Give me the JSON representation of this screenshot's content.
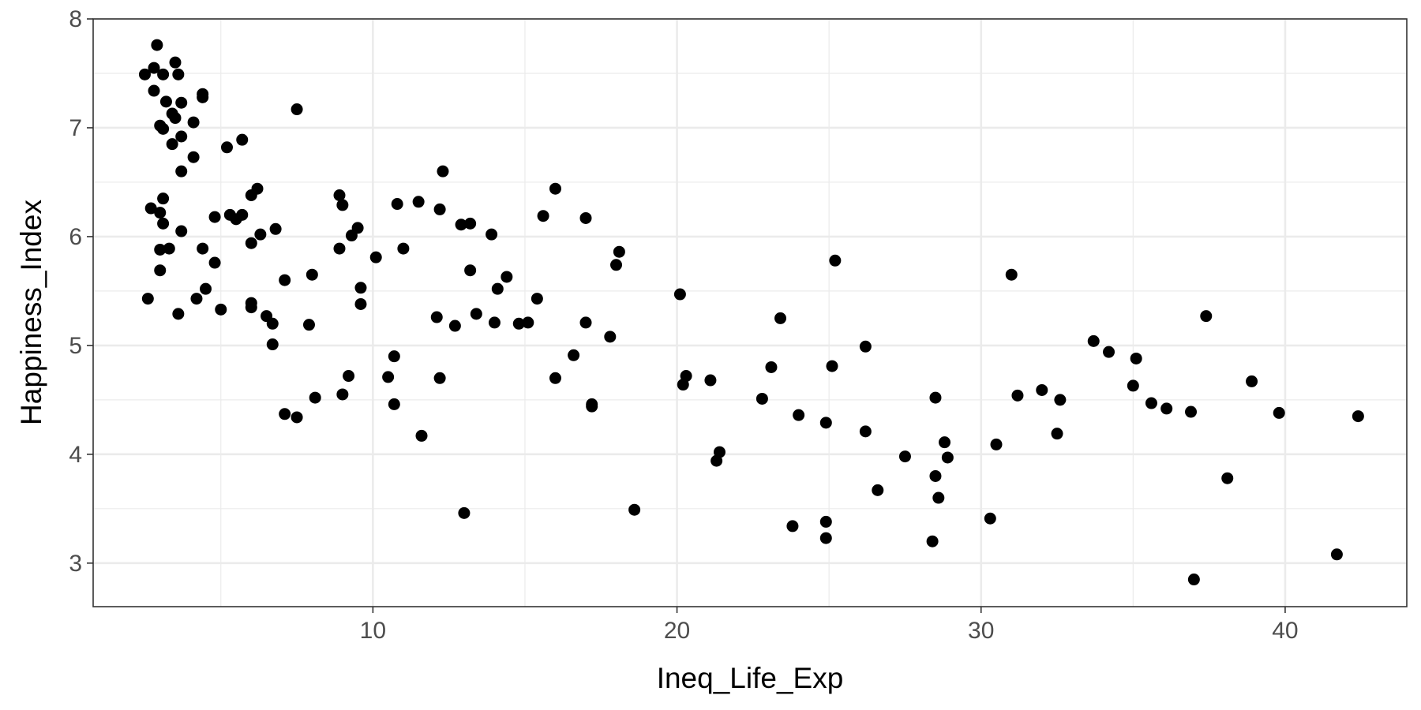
{
  "chart_data": {
    "type": "scatter",
    "title": "",
    "xlabel": "Ineq_Life_Exp",
    "ylabel": "Happiness_Index",
    "xlim": [
      0.8,
      44.0
    ],
    "ylim": [
      2.6,
      8.0
    ],
    "x_ticks": [
      10,
      20,
      30,
      40
    ],
    "x_tick_labels": [
      "10",
      "20",
      "30",
      "40"
    ],
    "x_minor_ticks": [
      5,
      15,
      25,
      35
    ],
    "y_ticks": [
      3,
      4,
      5,
      6,
      7,
      8
    ],
    "y_tick_labels": [
      "3",
      "4",
      "5",
      "6",
      "7",
      "8"
    ],
    "y_minor_ticks": [
      3.5,
      4.5,
      5.5,
      6.5,
      7.5
    ],
    "grid": true,
    "theme": "bw",
    "point_color": "#000000",
    "points": [
      [
        2.5,
        7.49
      ],
      [
        2.8,
        7.55
      ],
      [
        2.9,
        7.76
      ],
      [
        2.8,
        7.34
      ],
      [
        3.0,
        7.02
      ],
      [
        3.1,
        7.49
      ],
      [
        3.2,
        7.24
      ],
      [
        3.1,
        6.99
      ],
      [
        3.4,
        7.13
      ],
      [
        3.5,
        7.09
      ],
      [
        3.5,
        7.6
      ],
      [
        3.6,
        7.49
      ],
      [
        3.4,
        6.85
      ],
      [
        3.7,
        6.92
      ],
      [
        3.7,
        7.23
      ],
      [
        4.1,
        7.05
      ],
      [
        4.4,
        7.31
      ],
      [
        4.4,
        7.28
      ],
      [
        3.7,
        6.6
      ],
      [
        4.1,
        6.73
      ],
      [
        2.6,
        5.43
      ],
      [
        2.7,
        6.26
      ],
      [
        3.0,
        6.22
      ],
      [
        3.1,
        6.35
      ],
      [
        3.0,
        5.88
      ],
      [
        3.1,
        6.12
      ],
      [
        3.0,
        5.69
      ],
      [
        3.3,
        5.89
      ],
      [
        3.6,
        5.29
      ],
      [
        3.7,
        6.05
      ],
      [
        4.2,
        5.43
      ],
      [
        4.4,
        5.89
      ],
      [
        4.5,
        5.52
      ],
      [
        4.8,
        5.76
      ],
      [
        4.8,
        6.18
      ],
      [
        5.0,
        5.33
      ],
      [
        5.2,
        6.82
      ],
      [
        5.3,
        6.2
      ],
      [
        5.5,
        6.16
      ],
      [
        5.7,
        6.89
      ],
      [
        5.7,
        6.2
      ],
      [
        6.0,
        6.38
      ],
      [
        6.2,
        6.44
      ],
      [
        6.0,
        5.94
      ],
      [
        6.0,
        5.39
      ],
      [
        6.0,
        5.35
      ],
      [
        6.3,
        6.02
      ],
      [
        6.5,
        5.27
      ],
      [
        6.7,
        5.2
      ],
      [
        6.8,
        6.07
      ],
      [
        6.7,
        5.01
      ],
      [
        7.1,
        5.6
      ],
      [
        7.1,
        4.37
      ],
      [
        7.5,
        7.17
      ],
      [
        7.5,
        4.34
      ],
      [
        7.9,
        5.19
      ],
      [
        8.0,
        5.65
      ],
      [
        8.1,
        4.52
      ],
      [
        8.9,
        6.38
      ],
      [
        8.9,
        5.89
      ],
      [
        9.0,
        6.29
      ],
      [
        9.0,
        4.55
      ],
      [
        9.2,
        4.72
      ],
      [
        9.3,
        6.01
      ],
      [
        9.5,
        6.08
      ],
      [
        9.6,
        5.53
      ],
      [
        9.6,
        5.38
      ],
      [
        10.1,
        5.81
      ],
      [
        10.5,
        4.71
      ],
      [
        10.7,
        4.46
      ],
      [
        10.7,
        4.9
      ],
      [
        10.8,
        6.3
      ],
      [
        11.0,
        5.89
      ],
      [
        11.5,
        6.32
      ],
      [
        11.6,
        4.17
      ],
      [
        12.1,
        5.26
      ],
      [
        12.2,
        6.25
      ],
      [
        12.2,
        4.7
      ],
      [
        12.3,
        6.6
      ],
      [
        12.7,
        5.18
      ],
      [
        12.9,
        6.11
      ],
      [
        13.0,
        3.46
      ],
      [
        13.2,
        6.12
      ],
      [
        13.2,
        5.69
      ],
      [
        13.4,
        5.29
      ],
      [
        13.9,
        6.02
      ],
      [
        14.0,
        5.21
      ],
      [
        14.1,
        5.52
      ],
      [
        14.4,
        5.63
      ],
      [
        14.8,
        5.2
      ],
      [
        15.1,
        5.21
      ],
      [
        15.4,
        5.43
      ],
      [
        15.6,
        6.19
      ],
      [
        16.0,
        6.44
      ],
      [
        16.0,
        4.7
      ],
      [
        16.6,
        4.91
      ],
      [
        17.0,
        6.17
      ],
      [
        17.0,
        5.21
      ],
      [
        17.2,
        4.46
      ],
      [
        17.2,
        4.44
      ],
      [
        17.8,
        5.08
      ],
      [
        18.0,
        5.74
      ],
      [
        18.1,
        5.86
      ],
      [
        18.6,
        3.49
      ],
      [
        20.1,
        5.47
      ],
      [
        20.2,
        4.64
      ],
      [
        20.3,
        4.72
      ],
      [
        21.1,
        4.68
      ],
      [
        21.3,
        3.94
      ],
      [
        21.4,
        4.02
      ],
      [
        22.8,
        4.51
      ],
      [
        23.1,
        4.8
      ],
      [
        23.4,
        5.25
      ],
      [
        23.8,
        3.34
      ],
      [
        24.0,
        4.36
      ],
      [
        24.9,
        4.29
      ],
      [
        24.9,
        3.38
      ],
      [
        24.9,
        3.23
      ],
      [
        25.1,
        4.81
      ],
      [
        25.2,
        5.78
      ],
      [
        26.2,
        4.99
      ],
      [
        26.2,
        4.21
      ],
      [
        26.6,
        3.67
      ],
      [
        27.5,
        3.98
      ],
      [
        28.4,
        3.2
      ],
      [
        28.5,
        4.52
      ],
      [
        28.5,
        3.8
      ],
      [
        28.6,
        3.6
      ],
      [
        28.8,
        4.11
      ],
      [
        28.9,
        3.97
      ],
      [
        30.3,
        3.41
      ],
      [
        30.5,
        4.09
      ],
      [
        31.0,
        5.65
      ],
      [
        31.2,
        4.54
      ],
      [
        32.0,
        4.59
      ],
      [
        32.5,
        4.19
      ],
      [
        32.6,
        4.5
      ],
      [
        33.7,
        5.04
      ],
      [
        34.2,
        4.94
      ],
      [
        35.0,
        4.63
      ],
      [
        35.1,
        4.88
      ],
      [
        35.6,
        4.47
      ],
      [
        36.1,
        4.42
      ],
      [
        36.9,
        4.39
      ],
      [
        37.0,
        2.85
      ],
      [
        37.4,
        5.27
      ],
      [
        38.1,
        3.78
      ],
      [
        38.9,
        4.67
      ],
      [
        39.8,
        4.38
      ],
      [
        41.7,
        3.08
      ],
      [
        42.4,
        4.35
      ]
    ]
  }
}
